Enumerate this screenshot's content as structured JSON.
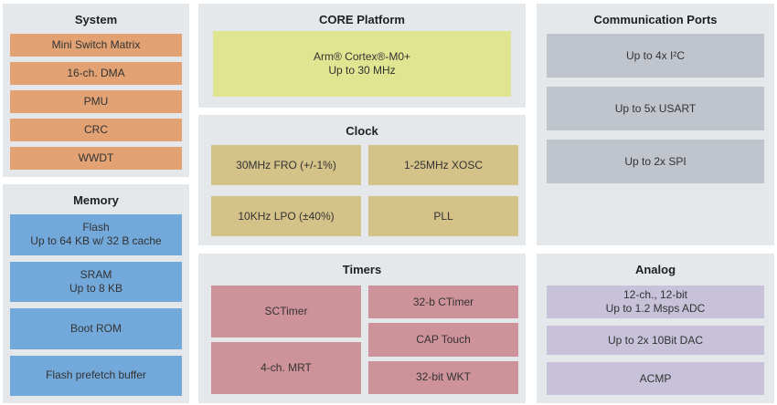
{
  "colors": {
    "page-bg": "#ffffff",
    "panel-bg": "#e4e8eb",
    "system-accent": "#e2a273",
    "memory-accent": "#73a8da",
    "core-accent": "#dfe591",
    "clock-accent": "#d4c289",
    "timers-accent": "#ce929b",
    "comm-accent": "#c0c5cd",
    "analog-accent": "#c7c1d9",
    "title-text": "#1f1f1f",
    "block-text": "#333333"
  },
  "panels": {
    "system": {
      "title": "System",
      "items": [
        "Mini Switch Matrix",
        "16-ch. DMA",
        "PMU",
        "CRC",
        "WWDT"
      ]
    },
    "memory": {
      "title": "Memory",
      "items": [
        "Flash\nUp to 64 KB w/ 32 B cache",
        "SRAM\nUp to 8 KB",
        "Boot ROM",
        "Flash prefetch buffer"
      ]
    },
    "core": {
      "title": "CORE Platform",
      "items": [
        "Arm® Cortex®-M0+\nUp to 30 MHz"
      ]
    },
    "clock": {
      "title": "Clock",
      "items": [
        "30MHz FRO (+/-1%)",
        "1-25MHz XOSC",
        "10KHz LPO (±40%)",
        "PLL"
      ]
    },
    "timers": {
      "title": "Timers",
      "left_items": [
        "SCTimer",
        "4-ch. MRT"
      ],
      "right_items": [
        "32-b CTimer",
        "CAP Touch",
        "32-bit WKT"
      ]
    },
    "comm": {
      "title": "Communication Ports",
      "items": [
        "Up to 4x I²C",
        "Up to 5x USART",
        "Up to 2x SPI"
      ]
    },
    "analog": {
      "title": "Analog",
      "items": [
        "12-ch., 12-bit\nUp to 1.2 Msps ADC",
        "Up to 2x 10Bit DAC",
        "ACMP"
      ]
    }
  }
}
